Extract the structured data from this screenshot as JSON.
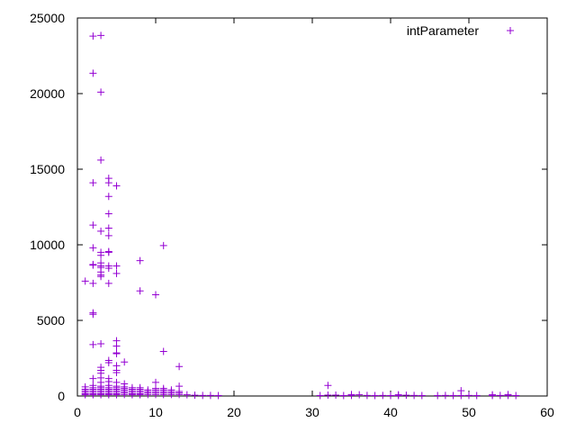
{
  "chart_data": {
    "type": "scatter",
    "xlim": [
      0,
      60
    ],
    "ylim": [
      0,
      25000
    ],
    "x_ticks": [
      0,
      10,
      20,
      30,
      40,
      50,
      60
    ],
    "y_ticks": [
      0,
      5000,
      10000,
      15000,
      20000,
      25000
    ],
    "grid": false,
    "legend_position": "top-right",
    "marker": "plus",
    "color": "#9400d3",
    "series": [
      {
        "name": "intParameter",
        "points": [
          [
            1,
            7600
          ],
          [
            1,
            600
          ],
          [
            1,
            450
          ],
          [
            1,
            350
          ],
          [
            1,
            250
          ],
          [
            1,
            150
          ],
          [
            1,
            80
          ],
          [
            2,
            23800
          ],
          [
            2,
            21350
          ],
          [
            2,
            14100
          ],
          [
            2,
            11300
          ],
          [
            2,
            9800
          ],
          [
            2,
            8700
          ],
          [
            2,
            8650
          ],
          [
            2,
            7450
          ],
          [
            2,
            5500
          ],
          [
            2,
            5400
          ],
          [
            2,
            3400
          ],
          [
            2,
            1150
          ],
          [
            2,
            700
          ],
          [
            2,
            550
          ],
          [
            2,
            450
          ],
          [
            2,
            350
          ],
          [
            2,
            250
          ],
          [
            2,
            150
          ],
          [
            2,
            80
          ],
          [
            3,
            23850
          ],
          [
            3,
            20100
          ],
          [
            3,
            15600
          ],
          [
            3,
            10900
          ],
          [
            3,
            9500
          ],
          [
            3,
            9300
          ],
          [
            3,
            8800
          ],
          [
            3,
            8600
          ],
          [
            3,
            8500
          ],
          [
            3,
            8200
          ],
          [
            3,
            8000
          ],
          [
            3,
            7900
          ],
          [
            3,
            3450
          ],
          [
            3,
            1900
          ],
          [
            3,
            1700
          ],
          [
            3,
            1500
          ],
          [
            3,
            1200
          ],
          [
            3,
            900
          ],
          [
            3,
            650
          ],
          [
            3,
            550
          ],
          [
            3,
            450
          ],
          [
            3,
            350
          ],
          [
            3,
            250
          ],
          [
            3,
            150
          ],
          [
            3,
            80
          ],
          [
            4,
            14400
          ],
          [
            4,
            14100
          ],
          [
            4,
            13200
          ],
          [
            4,
            12050
          ],
          [
            4,
            11100
          ],
          [
            4,
            10600
          ],
          [
            4,
            9550
          ],
          [
            4,
            9500
          ],
          [
            4,
            8600
          ],
          [
            4,
            8450
          ],
          [
            4,
            7450
          ],
          [
            4,
            2350
          ],
          [
            4,
            2200
          ],
          [
            4,
            1150
          ],
          [
            4,
            950
          ],
          [
            4,
            700
          ],
          [
            4,
            550
          ],
          [
            4,
            450
          ],
          [
            4,
            350
          ],
          [
            4,
            250
          ],
          [
            4,
            150
          ],
          [
            4,
            80
          ],
          [
            5,
            13900
          ],
          [
            5,
            8600
          ],
          [
            5,
            8100
          ],
          [
            5,
            3650
          ],
          [
            5,
            3300
          ],
          [
            5,
            2850
          ],
          [
            5,
            2800
          ],
          [
            5,
            2000
          ],
          [
            5,
            1700
          ],
          [
            5,
            1550
          ],
          [
            5,
            900
          ],
          [
            5,
            650
          ],
          [
            5,
            550
          ],
          [
            5,
            450
          ],
          [
            5,
            350
          ],
          [
            5,
            250
          ],
          [
            5,
            150
          ],
          [
            5,
            80
          ],
          [
            6,
            2250
          ],
          [
            6,
            800
          ],
          [
            6,
            600
          ],
          [
            6,
            500
          ],
          [
            6,
            400
          ],
          [
            6,
            300
          ],
          [
            6,
            200
          ],
          [
            6,
            100
          ],
          [
            7,
            550
          ],
          [
            7,
            450
          ],
          [
            7,
            350
          ],
          [
            7,
            250
          ],
          [
            7,
            150
          ],
          [
            7,
            80
          ],
          [
            8,
            8950
          ],
          [
            8,
            6950
          ],
          [
            8,
            550
          ],
          [
            8,
            450
          ],
          [
            8,
            350
          ],
          [
            8,
            250
          ],
          [
            8,
            150
          ],
          [
            8,
            80
          ],
          [
            9,
            400
          ],
          [
            9,
            300
          ],
          [
            9,
            200
          ],
          [
            9,
            100
          ],
          [
            10,
            6700
          ],
          [
            10,
            900
          ],
          [
            10,
            500
          ],
          [
            10,
            400
          ],
          [
            10,
            300
          ],
          [
            10,
            200
          ],
          [
            10,
            100
          ],
          [
            11,
            9950
          ],
          [
            11,
            2950
          ],
          [
            11,
            500
          ],
          [
            11,
            400
          ],
          [
            11,
            300
          ],
          [
            11,
            200
          ],
          [
            11,
            100
          ],
          [
            12,
            400
          ],
          [
            12,
            300
          ],
          [
            12,
            200
          ],
          [
            12,
            100
          ],
          [
            13,
            1950
          ],
          [
            13,
            650
          ],
          [
            13,
            300
          ],
          [
            13,
            200
          ],
          [
            13,
            100
          ],
          [
            14,
            80
          ],
          [
            15,
            50
          ],
          [
            16,
            40
          ],
          [
            17,
            40
          ],
          [
            18,
            30
          ],
          [
            31,
            30
          ],
          [
            32,
            700
          ],
          [
            32,
            60
          ],
          [
            33,
            60
          ],
          [
            34,
            30
          ],
          [
            35,
            100
          ],
          [
            35,
            40
          ],
          [
            36,
            80
          ],
          [
            37,
            40
          ],
          [
            38,
            30
          ],
          [
            39,
            40
          ],
          [
            40,
            30
          ],
          [
            41,
            80
          ],
          [
            41,
            30
          ],
          [
            42,
            50
          ],
          [
            43,
            40
          ],
          [
            44,
            30
          ],
          [
            46,
            30
          ],
          [
            47,
            40
          ],
          [
            48,
            30
          ],
          [
            49,
            350
          ],
          [
            49,
            30
          ],
          [
            50,
            40
          ],
          [
            51,
            30
          ],
          [
            53,
            80
          ],
          [
            53,
            30
          ],
          [
            54,
            40
          ],
          [
            55,
            100
          ],
          [
            55,
            40
          ],
          [
            56,
            30
          ]
        ]
      }
    ]
  }
}
